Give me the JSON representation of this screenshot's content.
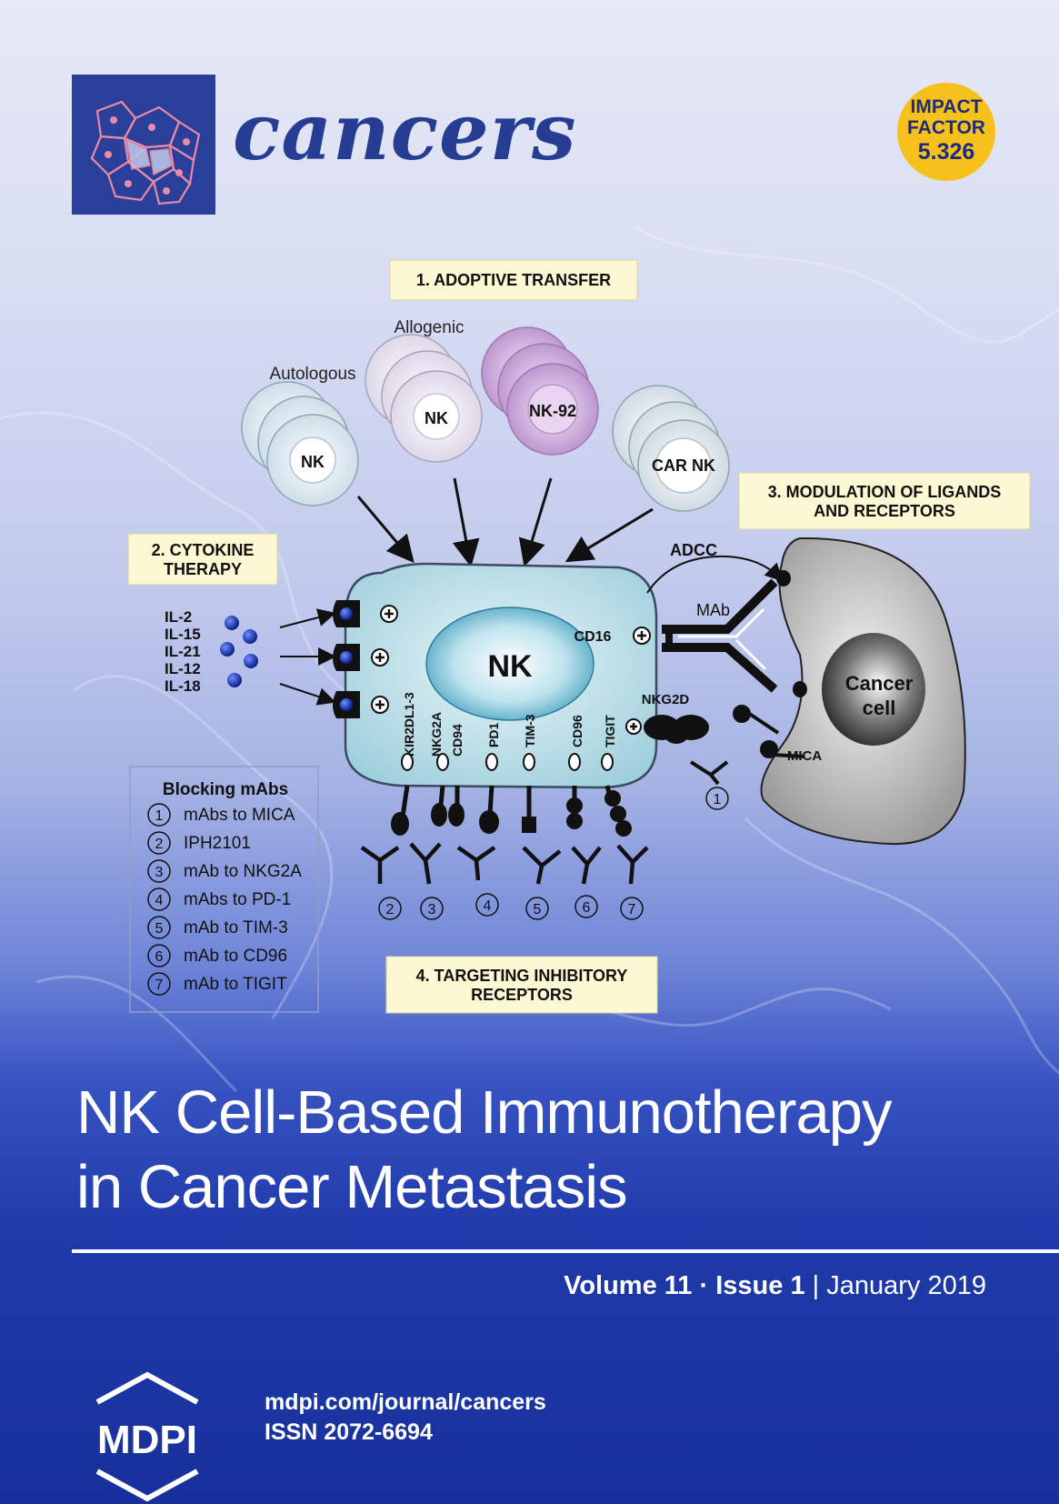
{
  "journal": {
    "name": "cancers",
    "impact_line1": "IMPACT",
    "impact_line2": "FACTOR",
    "impact_value": "5.326"
  },
  "diagram": {
    "section1": "1. ADOPTIVE TRANSFER",
    "section2_line1": "2. CYTOKINE",
    "section2_line2": "THERAPY",
    "section3_line1": "3. MODULATION OF LIGANDS",
    "section3_line2": "AND RECEPTORS",
    "section4_line1": "4. TARGETING INHIBITORY",
    "section4_line2": "RECEPTORS",
    "autologous": "Autologous",
    "allogenic": "Allogenic",
    "cell_nk_auto": "NK",
    "cell_nk_allo": "NK",
    "cell_nk92": "NK-92",
    "cell_car_nk": "CAR NK",
    "central_nk": "NK",
    "cytokines": [
      "IL-2",
      "IL-15",
      "IL-21",
      "IL-12",
      "IL-18"
    ],
    "adcc": "ADCC",
    "mab": "MAb",
    "cd16": "CD16",
    "nkg2d": "NKG2D",
    "mica": "MICA",
    "cancer_line1": "Cancer",
    "cancer_line2": "cell",
    "receptors": [
      "KIR2DL1-3",
      "NKG2A",
      "CD94",
      "PD1",
      "TIM-3",
      "CD96",
      "TIGIT"
    ],
    "blocking_title": "Blocking mAbs",
    "blocking_items": [
      {
        "num": "1",
        "label": "mAbs to MICA"
      },
      {
        "num": "2",
        "label": "IPH2101"
      },
      {
        "num": "3",
        "label": "mAb to NKG2A"
      },
      {
        "num": "4",
        "label": "mAbs to PD-1"
      },
      {
        "num": "5",
        "label": "mAb to TIM-3"
      },
      {
        "num": "6",
        "label": "mAb to CD96"
      },
      {
        "num": "7",
        "label": "mAb to TIGIT"
      }
    ],
    "antibody_numbers": [
      "2",
      "3",
      "4",
      "5",
      "6",
      "7"
    ],
    "mica_antibody_number": "1"
  },
  "article": {
    "title_line1": "NK Cell-Based Immunotherapy",
    "title_line2": "in Cancer Metastasis"
  },
  "issue": {
    "volume": "Volume 11",
    "separator": "·",
    "issue": "Issue 1",
    "bar": "|",
    "date": "January 2019"
  },
  "publisher": {
    "logo_text": "MDPI",
    "website": "mdpi.com/journal/cancers",
    "issn": "ISSN 2072-6694"
  }
}
